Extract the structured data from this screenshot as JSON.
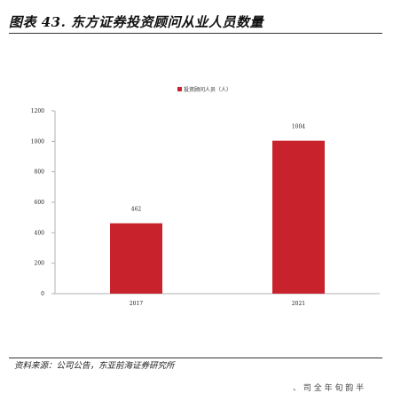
{
  "figure": {
    "title": "图表 43. 东方证券投资顾问从业人员数量",
    "source": "资料来源：公司公告，东亚前海证券研究所",
    "footer_cutoff": "、 司 全 年 旬 韵 半"
  },
  "colors": {
    "bar": "#c8232c",
    "axis": "#b0b0b0",
    "rule": "#333333"
  },
  "chart_data": {
    "type": "bar",
    "categories": [
      "2017",
      "2021"
    ],
    "series": [
      {
        "name": "投资顾问人员（人）",
        "values": [
          462,
          1004
        ]
      }
    ],
    "ylim": [
      0,
      1200
    ],
    "yticks": [
      "0",
      "200",
      "400",
      "600",
      "800",
      "1000",
      "1200"
    ],
    "data_labels": [
      "462",
      "1004"
    ],
    "legend_position": "top-center",
    "grid": false
  }
}
